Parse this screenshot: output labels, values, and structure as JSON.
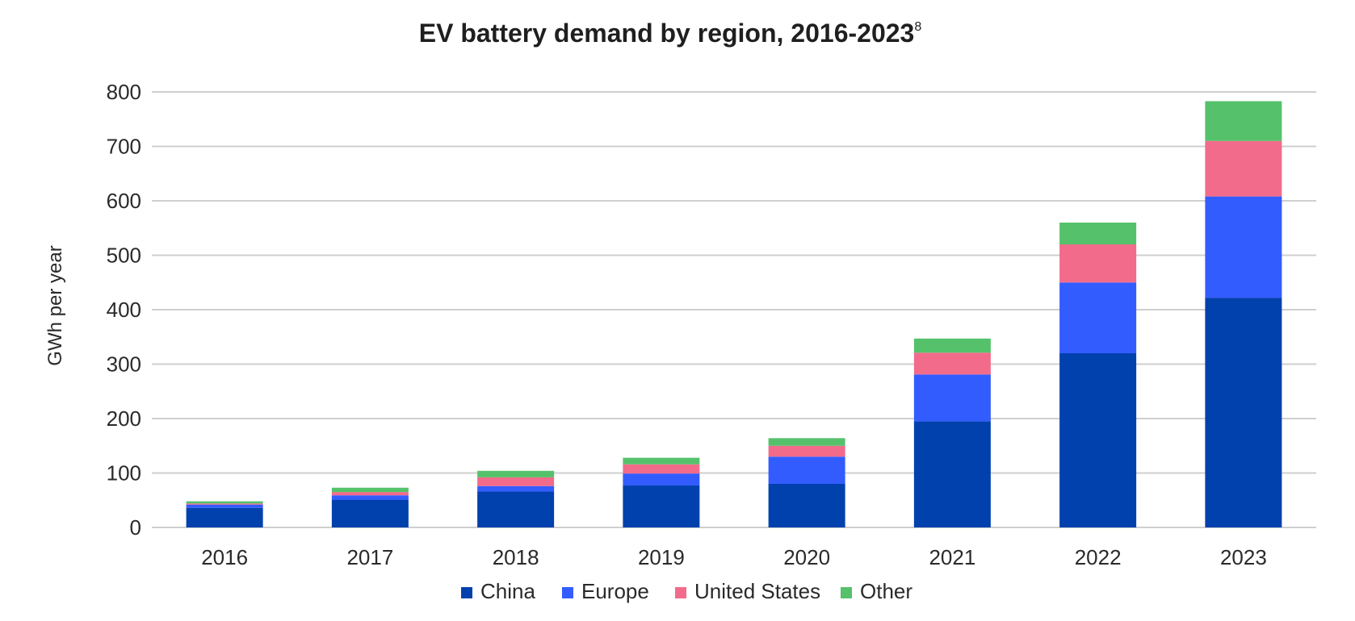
{
  "chart_data": {
    "type": "bar",
    "stacked": true,
    "title": "EV battery demand by region, 2016-2023",
    "title_superscript": "8",
    "xlabel": "",
    "ylabel": "GWh per year",
    "ylim": [
      0,
      800
    ],
    "yticks": [
      0,
      100,
      200,
      300,
      400,
      500,
      600,
      700,
      800
    ],
    "grid": true,
    "legend_position": "bottom",
    "categories": [
      "2016",
      "2017",
      "2018",
      "2019",
      "2020",
      "2021",
      "2022",
      "2023"
    ],
    "series": [
      {
        "name": "China",
        "color": "#0041ad",
        "values": [
          36,
          51,
          66,
          77,
          80,
          195,
          320,
          422
        ]
      },
      {
        "name": "Europe",
        "color": "#335cff",
        "values": [
          6,
          8,
          10,
          22,
          50,
          86,
          130,
          186
        ]
      },
      {
        "name": "United States",
        "color": "#f26b8a",
        "values": [
          2,
          6,
          16,
          17,
          20,
          40,
          70,
          102
        ]
      },
      {
        "name": "Other",
        "color": "#55c26b",
        "values": [
          4,
          8,
          12,
          12,
          14,
          26,
          40,
          73
        ]
      }
    ]
  }
}
